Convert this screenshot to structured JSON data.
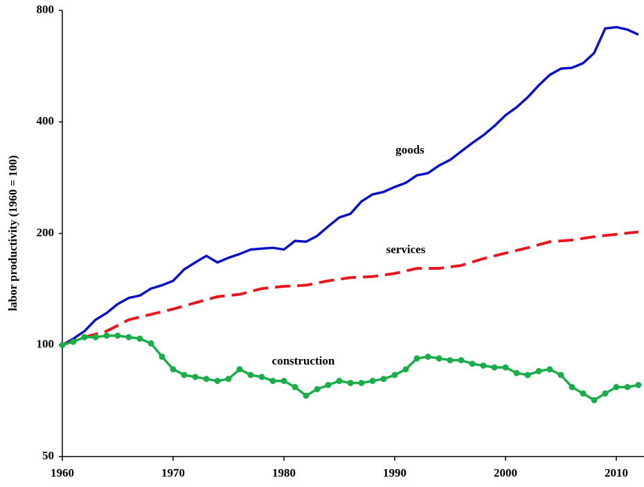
{
  "chart_data": {
    "type": "line",
    "ylabel": "labor productivity (1960 = 100)",
    "log_scale_y": true,
    "xlim": [
      1960,
      2012.5
    ],
    "xticks": [
      1960,
      1970,
      1980,
      1990,
      2000,
      2010
    ],
    "ylim": [
      50,
      800
    ],
    "yticks": [
      50,
      100,
      200,
      400,
      800
    ],
    "series": [
      {
        "name": "goods",
        "color": "#0a10c8",
        "style": "solid",
        "markers": false,
        "x": [
          1960,
          1961,
          1962,
          1963,
          1964,
          1965,
          1966,
          1967,
          1968,
          1969,
          1970,
          1971,
          1972,
          1973,
          1974,
          1975,
          1976,
          1977,
          1978,
          1979,
          1980,
          1981,
          1982,
          1983,
          1984,
          1985,
          1986,
          1987,
          1988,
          1989,
          1990,
          1991,
          1992,
          1993,
          1994,
          1995,
          1996,
          1997,
          1998,
          1999,
          2000,
          2001,
          2002,
          2003,
          2004,
          2005,
          2006,
          2007,
          2008,
          2009,
          2010,
          2011,
          2012
        ],
        "values": [
          100,
          104,
          109,
          117,
          122,
          129,
          134,
          136,
          142,
          145,
          149,
          160,
          167,
          174,
          167,
          172,
          176,
          181,
          182,
          183,
          181,
          191,
          190,
          197,
          209,
          221,
          226,
          244,
          255,
          259,
          267,
          274,
          287,
          291,
          305,
          316,
          333,
          351,
          368,
          390,
          417,
          438,
          466,
          502,
          536,
          557,
          560,
          576,
          614,
          715,
          721,
          710,
          688
        ]
      },
      {
        "name": "services",
        "color": "#e8161c",
        "style": "dashed",
        "markers": false,
        "x": [
          1960,
          1962,
          1964,
          1966,
          1968,
          1970,
          1972,
          1974,
          1976,
          1978,
          1980,
          1982,
          1984,
          1986,
          1988,
          1990,
          1992,
          1994,
          1996,
          1998,
          2000,
          2002,
          2004,
          2006,
          2008,
          2010,
          2012
        ],
        "values": [
          100,
          105,
          109,
          117,
          121,
          125,
          130,
          135,
          137,
          142,
          144,
          145,
          149,
          152,
          153,
          156,
          161,
          161,
          164,
          171,
          177,
          183,
          190,
          192,
          196,
          199,
          202
        ]
      },
      {
        "name": "construction",
        "color": "#1aad4a",
        "style": "solid",
        "markers": true,
        "x": [
          1960,
          1961,
          1962,
          1963,
          1964,
          1965,
          1966,
          1967,
          1968,
          1969,
          1970,
          1971,
          1972,
          1973,
          1974,
          1975,
          1976,
          1977,
          1978,
          1979,
          1980,
          1981,
          1982,
          1983,
          1984,
          1985,
          1986,
          1987,
          1988,
          1989,
          1990,
          1991,
          1992,
          1993,
          1994,
          1995,
          1996,
          1997,
          1998,
          1999,
          2000,
          2001,
          2002,
          2003,
          2004,
          2005,
          2006,
          2007,
          2008,
          2009,
          2010,
          2011,
          2012
        ],
        "values": [
          100,
          102,
          105,
          105,
          106,
          106,
          105,
          104,
          101,
          93,
          86,
          83,
          82,
          81,
          80,
          81,
          86,
          83,
          82,
          80,
          80,
          77,
          73,
          76,
          78,
          80,
          79,
          79,
          80,
          81,
          83,
          86,
          92,
          93,
          92,
          91,
          91,
          89,
          88,
          87,
          87,
          84,
          83,
          85,
          86,
          83,
          77,
          74,
          71,
          74,
          77,
          77,
          78
        ]
      }
    ]
  }
}
